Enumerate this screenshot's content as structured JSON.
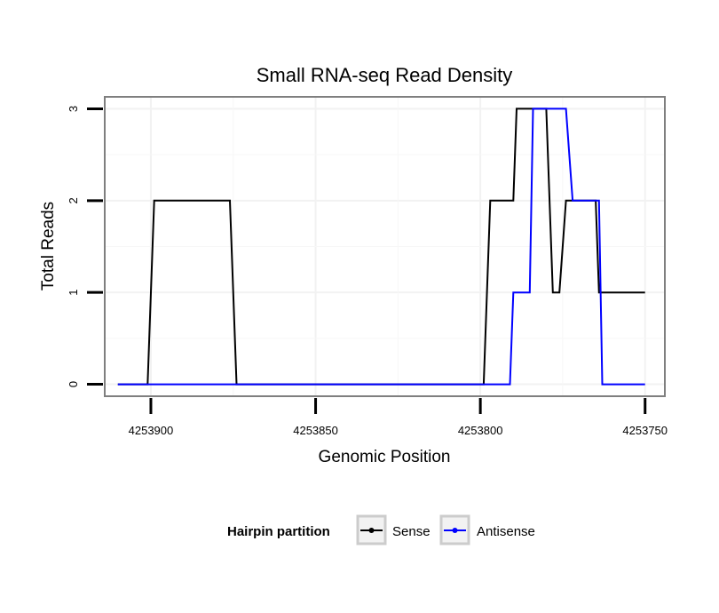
{
  "chart_data": {
    "type": "line",
    "title": "Small RNA-seq Read Density",
    "xlabel": "Genomic Position",
    "ylabel": "Total Reads",
    "x_reversed": true,
    "xlim": [
      4253914,
      4253744
    ],
    "ylim": [
      -0.13,
      3.13
    ],
    "x_ticks": [
      4253900,
      4253850,
      4253800,
      4253750
    ],
    "x_tick_labels": [
      "4253900",
      "4253850",
      "4253800",
      "4253750"
    ],
    "y_ticks": [
      0,
      1,
      2,
      3
    ],
    "y_tick_labels": [
      "0",
      "1",
      "2",
      "3"
    ],
    "grid": true,
    "legend": {
      "title": "Hairpin partition",
      "position": "bottom",
      "entries": [
        "Sense",
        "Antisense"
      ]
    },
    "series": [
      {
        "name": "Sense",
        "color": "#000000",
        "x": [
          4253910,
          4253901,
          4253899,
          4253876,
          4253874,
          4253799,
          4253797,
          4253790,
          4253789,
          4253780,
          4253778,
          4253776,
          4253774,
          4253765,
          4253764,
          4253750
        ],
        "y": [
          0,
          0,
          2,
          2,
          0,
          0,
          2,
          2,
          3,
          3,
          1,
          1,
          2,
          2,
          1,
          1
        ]
      },
      {
        "name": "Antisense",
        "color": "#0000ff",
        "x": [
          4253910,
          4253791,
          4253790,
          4253785,
          4253784,
          4253774,
          4253772,
          4253764,
          4253763,
          4253750
        ],
        "y": [
          0,
          0,
          1,
          1,
          3,
          3,
          2,
          2,
          0,
          0
        ]
      }
    ]
  }
}
